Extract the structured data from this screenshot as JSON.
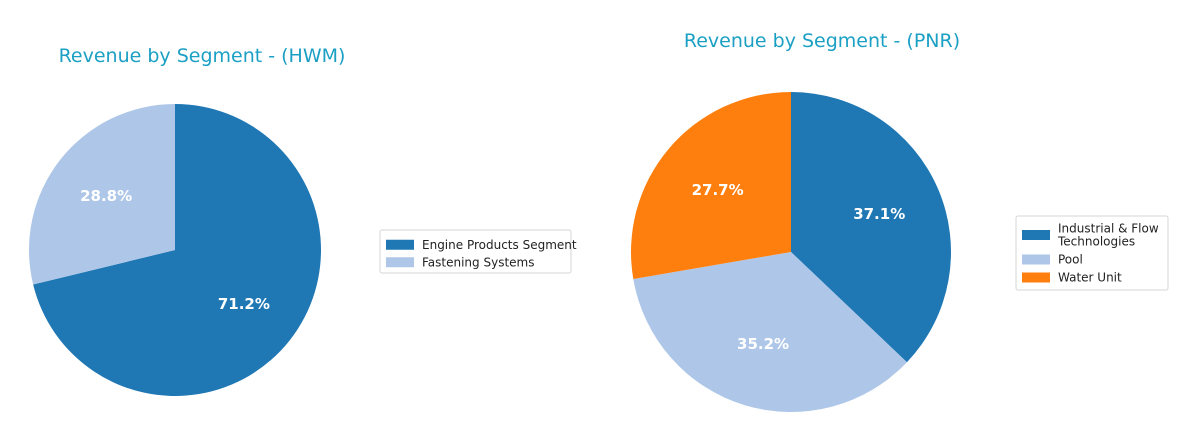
{
  "colors": {
    "title": "#1ba0c4",
    "label": "#ffffff"
  },
  "chart_data": [
    {
      "type": "pie",
      "title": "Revenue by Segment - (HWM)",
      "start_angle_deg": 90,
      "direction": "clockwise",
      "legend_position": "right",
      "slices": [
        {
          "label": "Engine Products Segment",
          "value": 71.2,
          "pct_label": "71.2%",
          "color": "#1f77b4"
        },
        {
          "label": "Fastening Systems",
          "value": 28.8,
          "pct_label": "28.8%",
          "color": "#aec7e8"
        }
      ]
    },
    {
      "type": "pie",
      "title": "Revenue by Segment - (PNR)",
      "start_angle_deg": 90,
      "direction": "clockwise",
      "legend_position": "right",
      "slices": [
        {
          "label": "Industrial & Flow Technologies",
          "legend_lines": [
            "Industrial & Flow",
            "Technologies"
          ],
          "value": 37.1,
          "pct_label": "37.1%",
          "color": "#1f77b4"
        },
        {
          "label": "Pool",
          "legend_lines": [
            "Pool"
          ],
          "value": 35.2,
          "pct_label": "35.2%",
          "color": "#aec7e8"
        },
        {
          "label": "Water Unit",
          "legend_lines": [
            "Water Unit"
          ],
          "value": 27.7,
          "pct_label": "27.7%",
          "color": "#ff7f0e"
        }
      ]
    }
  ]
}
